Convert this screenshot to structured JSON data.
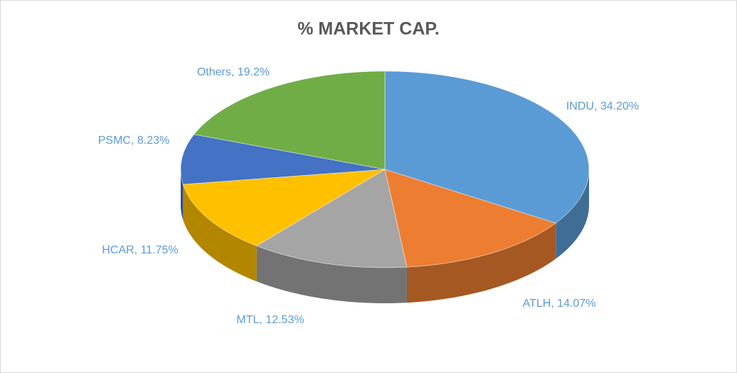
{
  "chart_data": {
    "type": "pie3d",
    "title": "% MARKET CAP.",
    "values": [
      34.2,
      14.07,
      12.53,
      11.75,
      8.23,
      19.2
    ],
    "value_labels": [
      "INDU, 34.20%",
      "ATLH, 14.07%",
      "MTL, 12.53%",
      "HCAR, 11.75%",
      "PSMC, 8.23%",
      "Others, 19.2%"
    ],
    "colors": [
      "#5b9bd5",
      "#ed7d31",
      "#a5a5a5",
      "#ffc000",
      "#4472c4",
      "#70ad47"
    ]
  }
}
